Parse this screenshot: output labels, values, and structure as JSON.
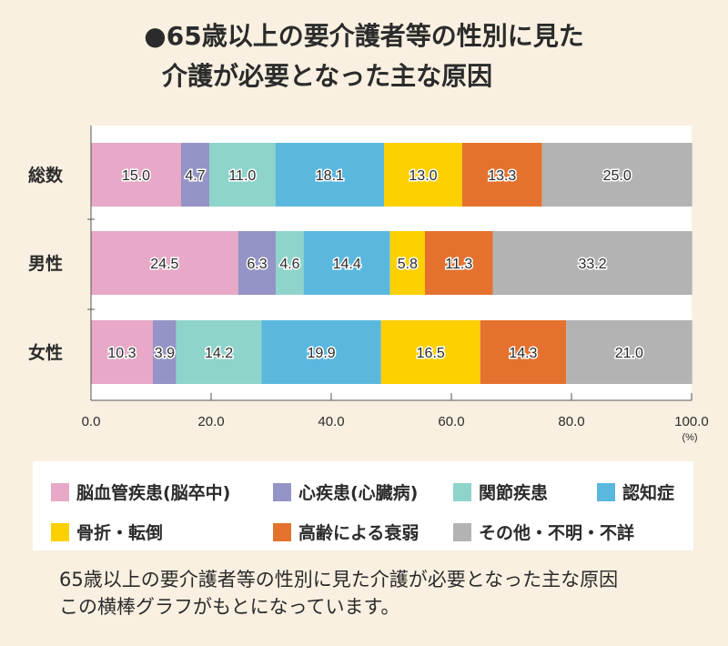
{
  "title": {
    "line1": "●65歳以上の要介護者等の性別に見た",
    "line2": "介護が必要となった主な原因"
  },
  "chart_data": {
    "type": "bar",
    "orientation": "horizontal",
    "stacked": true,
    "categories": [
      "総数",
      "男性",
      "女性"
    ],
    "series": [
      {
        "name": "脳血管疾患(脳卒中)",
        "color": "#e8a8c7",
        "values": [
          15.0,
          24.5,
          10.3
        ],
        "labels": [
          "15.0",
          "24.5",
          "10.3"
        ]
      },
      {
        "name": "心疾患(心臓病)",
        "color": "#9494c6",
        "values": [
          4.7,
          6.3,
          3.9
        ],
        "labels": [
          "4.7",
          "6.3",
          "3.9"
        ]
      },
      {
        "name": "関節疾患",
        "color": "#8ed4cb",
        "values": [
          11.0,
          4.6,
          14.2
        ],
        "labels": [
          "11.0",
          "4.6",
          "14.2"
        ]
      },
      {
        "name": "認知症",
        "color": "#5ab8df",
        "values": [
          18.1,
          14.4,
          19.9
        ],
        "labels": [
          "18.1",
          "14.4",
          "19.9"
        ]
      },
      {
        "name": "骨折・転倒",
        "color": "#fdd000",
        "values": [
          13.0,
          5.8,
          16.5
        ],
        "labels": [
          "13.0",
          "5.8",
          "16.5"
        ]
      },
      {
        "name": "高齢による衰弱",
        "color": "#e4722e",
        "values": [
          13.3,
          11.3,
          14.3
        ],
        "labels": [
          "13.3",
          "11.3",
          "14.3"
        ]
      },
      {
        "name": "その他・不明・不詳",
        "color": "#b3b3b3",
        "values": [
          25.0,
          33.2,
          21.0
        ],
        "labels": [
          "25.0",
          "33.2",
          "21.0"
        ]
      }
    ],
    "xlim": [
      0,
      100
    ],
    "xticks": [
      0,
      20,
      40,
      60,
      80,
      100
    ],
    "xtick_labels": [
      "0.0",
      "20.0",
      "40.0",
      "60.0",
      "80.0",
      "100.0"
    ],
    "unit_label": "(%)",
    "legend_position": "bottom"
  },
  "caption": {
    "line1": "65歳以上の要介護者等の性別に見た介護が必要となった主な原因",
    "line2": "この横棒グラフがもとになっています。"
  }
}
